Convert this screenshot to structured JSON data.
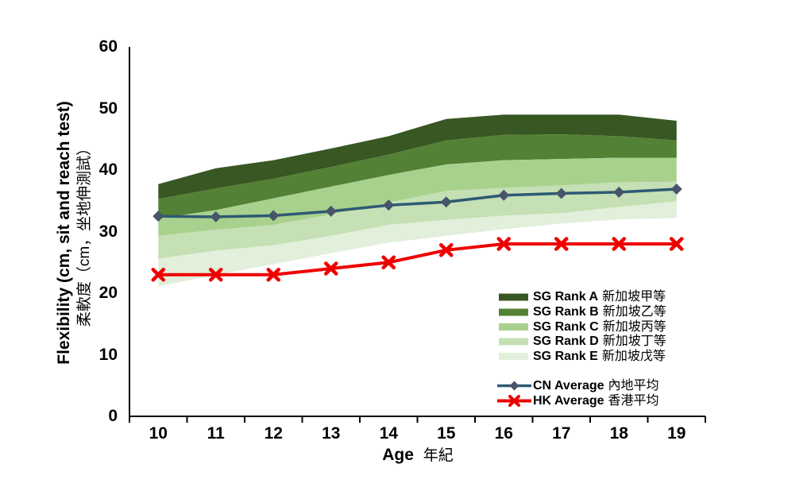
{
  "chart_data": {
    "type": "area",
    "title": "",
    "categories": [
      "10",
      "11",
      "12",
      "13",
      "14",
      "15",
      "16",
      "17",
      "18",
      "19"
    ],
    "x_axis": {
      "title_en": "Age",
      "title_zh": "年紀",
      "tick_labels": [
        "10",
        "11",
        "12",
        "13",
        "14",
        "15",
        "16",
        "17",
        "18",
        "19"
      ]
    },
    "y_axis": {
      "title_en": "Flexibility (cm, sit and reach test)",
      "title_zh": "柔軟度（cm，坐地伸測試）",
      "min": 0,
      "max": 60,
      "tick_step": 10,
      "tick_labels": [
        "0",
        "10",
        "20",
        "30",
        "40",
        "50",
        "60"
      ]
    },
    "grid": false,
    "legend_position": "inside-lower-right",
    "axis_color": "#000000",
    "bands": [
      {
        "id": "sg-rank-a",
        "label_en": "SG Rank A",
        "label_zh": "新加坡甲等",
        "color": "#385723",
        "upper": [
          37.7,
          40.3,
          41.6,
          43.5,
          45.5,
          48.3,
          49.0,
          49.0,
          49.0,
          48.0
        ],
        "lower": [
          35.3,
          37.0,
          38.6,
          40.5,
          42.5,
          44.8,
          45.7,
          45.8,
          45.5,
          44.8
        ]
      },
      {
        "id": "sg-rank-b",
        "label_en": "SG Rank B",
        "label_zh": "新加坡乙等",
        "color": "#538135",
        "upper": [
          35.3,
          37.0,
          38.6,
          40.5,
          42.5,
          44.8,
          45.7,
          45.8,
          45.5,
          44.8
        ],
        "lower": [
          32.1,
          33.5,
          35.4,
          37.3,
          39.2,
          40.9,
          41.6,
          41.8,
          42.0,
          42.0
        ]
      },
      {
        "id": "sg-rank-c",
        "label_en": "SG Rank C",
        "label_zh": "新加坡丙等",
        "color": "#A9D18E",
        "upper": [
          32.1,
          33.5,
          35.4,
          37.3,
          39.2,
          40.9,
          41.6,
          41.8,
          42.0,
          42.0
        ],
        "lower": [
          29.3,
          30.3,
          31.1,
          32.8,
          34.7,
          36.6,
          37.1,
          37.5,
          38.0,
          38.1
        ]
      },
      {
        "id": "sg-rank-d",
        "label_en": "SG Rank D",
        "label_zh": "新加坡丁等",
        "color": "#C5E0B4",
        "upper": [
          29.3,
          30.3,
          31.1,
          32.8,
          34.7,
          36.6,
          37.1,
          37.5,
          38.0,
          38.1
        ],
        "lower": [
          25.6,
          26.9,
          27.8,
          29.3,
          31.1,
          31.9,
          32.6,
          33.0,
          34.0,
          34.9
        ]
      },
      {
        "id": "sg-rank-e",
        "label_en": "SG Rank E",
        "label_zh": "新加坡戊等",
        "color": "#E2EFDA",
        "upper": [
          25.6,
          26.9,
          27.8,
          29.3,
          31.1,
          31.9,
          32.6,
          33.0,
          34.0,
          34.9
        ],
        "lower": [
          21.1,
          23.0,
          24.7,
          26.5,
          28.2,
          29.3,
          30.4,
          31.3,
          32.0,
          32.2
        ]
      }
    ],
    "lines": [
      {
        "id": "cn-average",
        "label_en": "CN Average",
        "label_zh": "內地平均",
        "color": "#2D5A73",
        "marker": "diamond",
        "marker_color": "#465569",
        "values": [
          32.5,
          32.4,
          32.6,
          33.3,
          34.3,
          34.8,
          35.9,
          36.2,
          36.4,
          36.9
        ]
      },
      {
        "id": "hk-average",
        "label_en": "HK Average",
        "label_zh": "香港平均",
        "color": "#EE0000",
        "marker": "x",
        "marker_color": "#EE0000",
        "values": [
          23,
          23,
          23,
          24,
          25,
          27,
          28,
          28,
          28,
          28
        ]
      }
    ]
  }
}
